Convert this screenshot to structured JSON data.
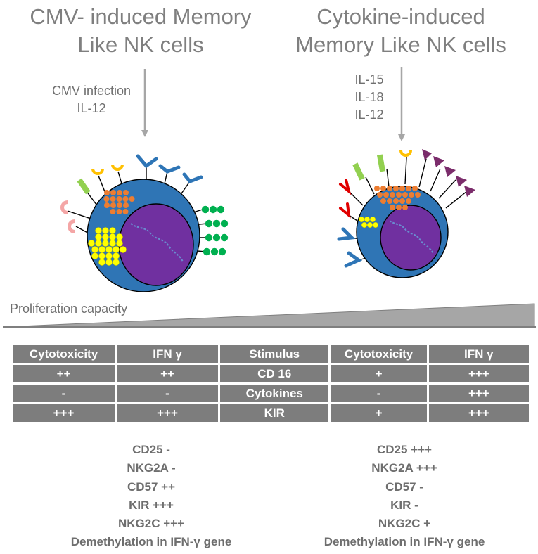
{
  "left_panel": {
    "title_line1": "CMV- induced Memory",
    "title_line2": "Like NK cells",
    "stimuli": [
      "CMV infection",
      "IL-12"
    ]
  },
  "right_panel": {
    "title_line1": "Cytokine-induced",
    "title_line2": "Memory Like NK cells",
    "stimuli": [
      "IL-15",
      "IL-18",
      "IL-12"
    ]
  },
  "proliferation_label": "Proliferation capacity",
  "left_table": {
    "headers": [
      "Cytotoxicity",
      "IFN γ"
    ],
    "rows": [
      [
        "++",
        "++"
      ],
      [
        "-",
        "-"
      ],
      [
        "+++",
        "+++"
      ]
    ]
  },
  "right_table": {
    "headers": [
      "Stimulus",
      "Cytotoxicity",
      "IFN γ"
    ],
    "rows": [
      [
        "CD 16",
        "+",
        "+++"
      ],
      [
        "Cytokines",
        "-",
        "+++"
      ],
      [
        "KIR",
        "+",
        "+++"
      ]
    ]
  },
  "left_markers": [
    "CD25 -",
    "NKG2A -",
    "CD57 ++",
    "KIR +++",
    "NKG2C +++",
    "Demethylation in IFN-γ  gene"
  ],
  "right_markers": [
    "CD25 +++",
    "NKG2A +++",
    "CD57 -",
    "KIR -",
    "NKG2C +",
    "Demethylation in IFN-γ  gene"
  ],
  "colors": {
    "cell": "#2f75b5",
    "nucleus": "#7030a0",
    "granule_orange": "#ed7d31",
    "granule_yellow": "#ffff00",
    "receptor_green": "#00b050",
    "receptor_light_green": "#92d050",
    "receptor_gold": "#ffc000",
    "receptor_pink": "#f4a6a6",
    "receptor_blue": "#2e75b6",
    "receptor_red": "#e00000",
    "receptor_purple": "#7b2c6b",
    "table_cell": "#7d7d7d"
  }
}
